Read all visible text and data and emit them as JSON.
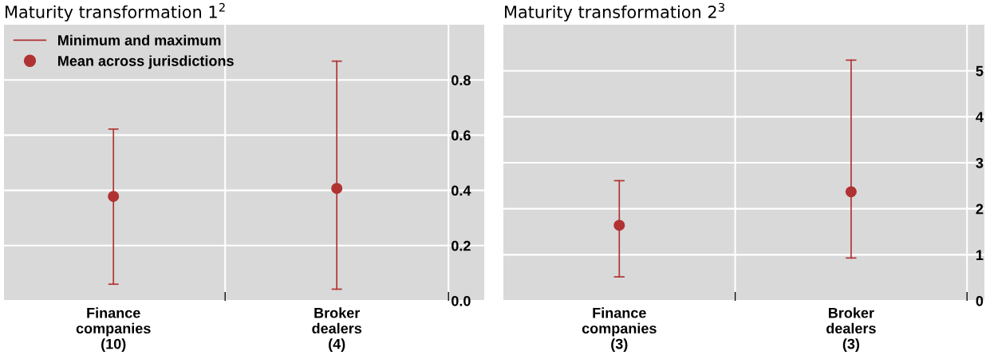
{
  "chart_data": [
    {
      "type": "scatter",
      "title": "Maturity transformation 1$^{2}$",
      "categories": [
        "Finance\ncompanies\n(10)",
        "Broker\ndealers\n(4)"
      ],
      "series": [
        {
          "name": "Mean across jurisdictions",
          "color": "#b03232",
          "values": [
            0.378,
            0.407
          ],
          "errors": [
            [
              0.06,
              0.622
            ],
            [
              0.042,
              0.868
            ]
          ]
        },
        {
          "name": "Minimum and maximum",
          "color": "#b03232",
          "marker": "none",
          "values": [
            null,
            null
          ]
        }
      ],
      "ylim": [
        0,
        1.0
      ],
      "yticks": [
        {
          "value": 0,
          "label": "0.0"
        },
        0.2,
        0.4,
        0.6,
        0.8
      ],
      "grid": true,
      "legend": "top left",
      "marker": "circle"
    },
    {
      "type": "scatter",
      "title": "Maturity transformation 2$^{3}$",
      "categories": [
        "Finance\ncompanies\n(3)",
        "Broker\ndealers\n(3)"
      ],
      "series": [
        {
          "color": "#b03232",
          "values": [
            1.64,
            2.37
          ],
          "errors": [
            [
              0.52,
              2.61
            ],
            [
              0.93,
              5.23
            ]
          ]
        }
      ],
      "ylim": [
        0,
        6
      ],
      "yticks": [
        0,
        1,
        2,
        3,
        4,
        5
      ],
      "grid": true,
      "legend": false,
      "marker": "circle"
    }
  ]
}
